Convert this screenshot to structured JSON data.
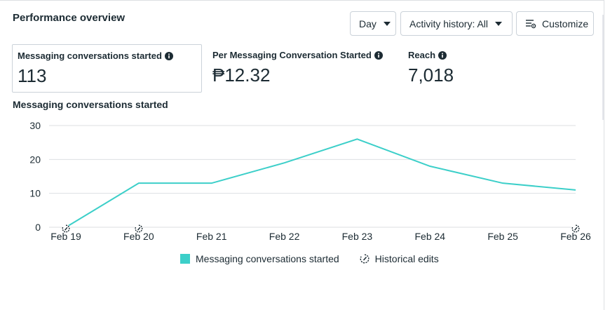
{
  "panel": {
    "title": "Performance overview"
  },
  "toolbar": {
    "day_label": "Day",
    "activity_label": "Activity history: All",
    "customize_label": "Customize"
  },
  "metrics": [
    {
      "label": "Messaging conversations started",
      "value": "113",
      "selected": true
    },
    {
      "label": "Per Messaging Conversation Started",
      "value": "₱12.32",
      "selected": false
    },
    {
      "label": "Reach",
      "value": "7,018",
      "selected": false
    }
  ],
  "colors": {
    "accent": "#3ccfc9",
    "grid": "#dddfe2",
    "text": "#1c2b33"
  },
  "chart_data": {
    "type": "line",
    "title": "Messaging conversations started",
    "categories": [
      "Feb 19",
      "Feb 20",
      "Feb 21",
      "Feb 22",
      "Feb 23",
      "Feb 24",
      "Feb 25",
      "Feb 26"
    ],
    "series": [
      {
        "name": "Messaging conversations started",
        "values": [
          0,
          13,
          13,
          19,
          26,
          18,
          13,
          11
        ]
      }
    ],
    "yticks": [
      0,
      10,
      20,
      30
    ],
    "ylim": [
      0,
      30
    ],
    "grid": true,
    "historical_edit_markers": [
      "Feb 19",
      "Feb 20",
      "Feb 26"
    ],
    "legend": [
      "Messaging conversations started",
      "Historical edits"
    ],
    "legend_position": "bottom"
  }
}
